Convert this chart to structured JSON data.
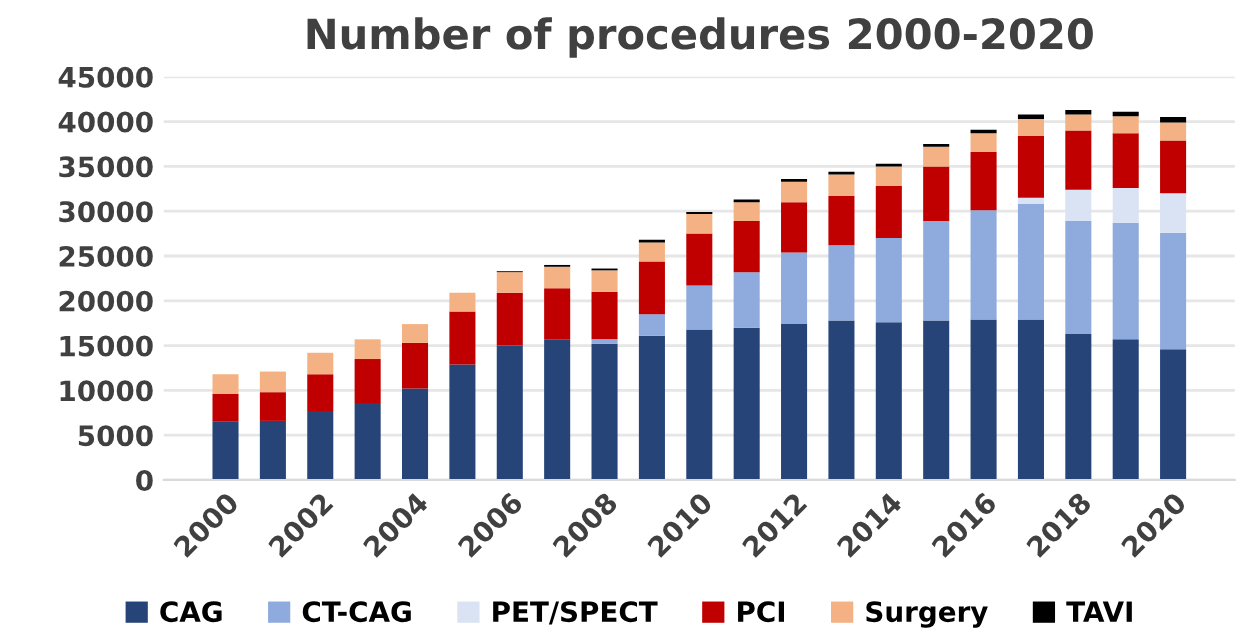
{
  "chart_data": {
    "type": "bar",
    "title": "Number of procedures 2000-2020",
    "stacked": true,
    "categories": [
      "2000",
      null,
      "2002",
      null,
      "2004",
      null,
      "2006",
      null,
      "2008",
      null,
      "2010",
      null,
      "2012",
      null,
      "2014",
      null,
      "2016",
      null,
      "2018",
      null,
      "2020"
    ],
    "series": [
      {
        "name": "CAG",
        "color": "#264478",
        "values": [
          6500,
          6600,
          7700,
          8600,
          10200,
          12900,
          15000,
          15700,
          15200,
          16100,
          16800,
          17000,
          17400,
          17800,
          17600,
          17800,
          17900,
          17900,
          16300,
          15700,
          14600
        ]
      },
      {
        "name": "CT-CAG",
        "color": "#8faadc",
        "values": [
          0,
          0,
          0,
          0,
          0,
          0,
          0,
          0,
          500,
          2400,
          4900,
          6200,
          8000,
          8400,
          9400,
          11100,
          12200,
          12900,
          12600,
          13000,
          13000
        ]
      },
      {
        "name": "PET/SPECT",
        "color": "#dae3f3",
        "values": [
          0,
          0,
          0,
          0,
          0,
          0,
          0,
          0,
          0,
          0,
          0,
          0,
          0,
          0,
          0,
          0,
          0,
          700,
          3500,
          3900,
          4400
        ]
      },
      {
        "name": "PCI",
        "color": "#c00000",
        "values": [
          3100,
          3200,
          4100,
          4900,
          5100,
          5900,
          5900,
          5700,
          5300,
          5900,
          5800,
          5700,
          5600,
          5500,
          5800,
          6100,
          6500,
          6900,
          6600,
          6100,
          5900
        ]
      },
      {
        "name": "Surgery",
        "color": "#f4b183",
        "values": [
          2200,
          2300,
          2400,
          2200,
          2100,
          2100,
          2300,
          2400,
          2400,
          2100,
          2200,
          2100,
          2300,
          2400,
          2200,
          2200,
          2100,
          1900,
          1800,
          1900,
          2000
        ]
      },
      {
        "name": "TAVI",
        "color": "#000000",
        "values": [
          0,
          0,
          0,
          0,
          0,
          0,
          100,
          200,
          200,
          300,
          200,
          300,
          300,
          300,
          300,
          300,
          400,
          500,
          500,
          500,
          600
        ]
      }
    ],
    "ylim": [
      0,
      45000
    ],
    "yticks": [
      0,
      5000,
      10000,
      15000,
      20000,
      25000,
      30000,
      35000,
      40000,
      45000
    ],
    "grid": "y",
    "legend": "bottom"
  }
}
